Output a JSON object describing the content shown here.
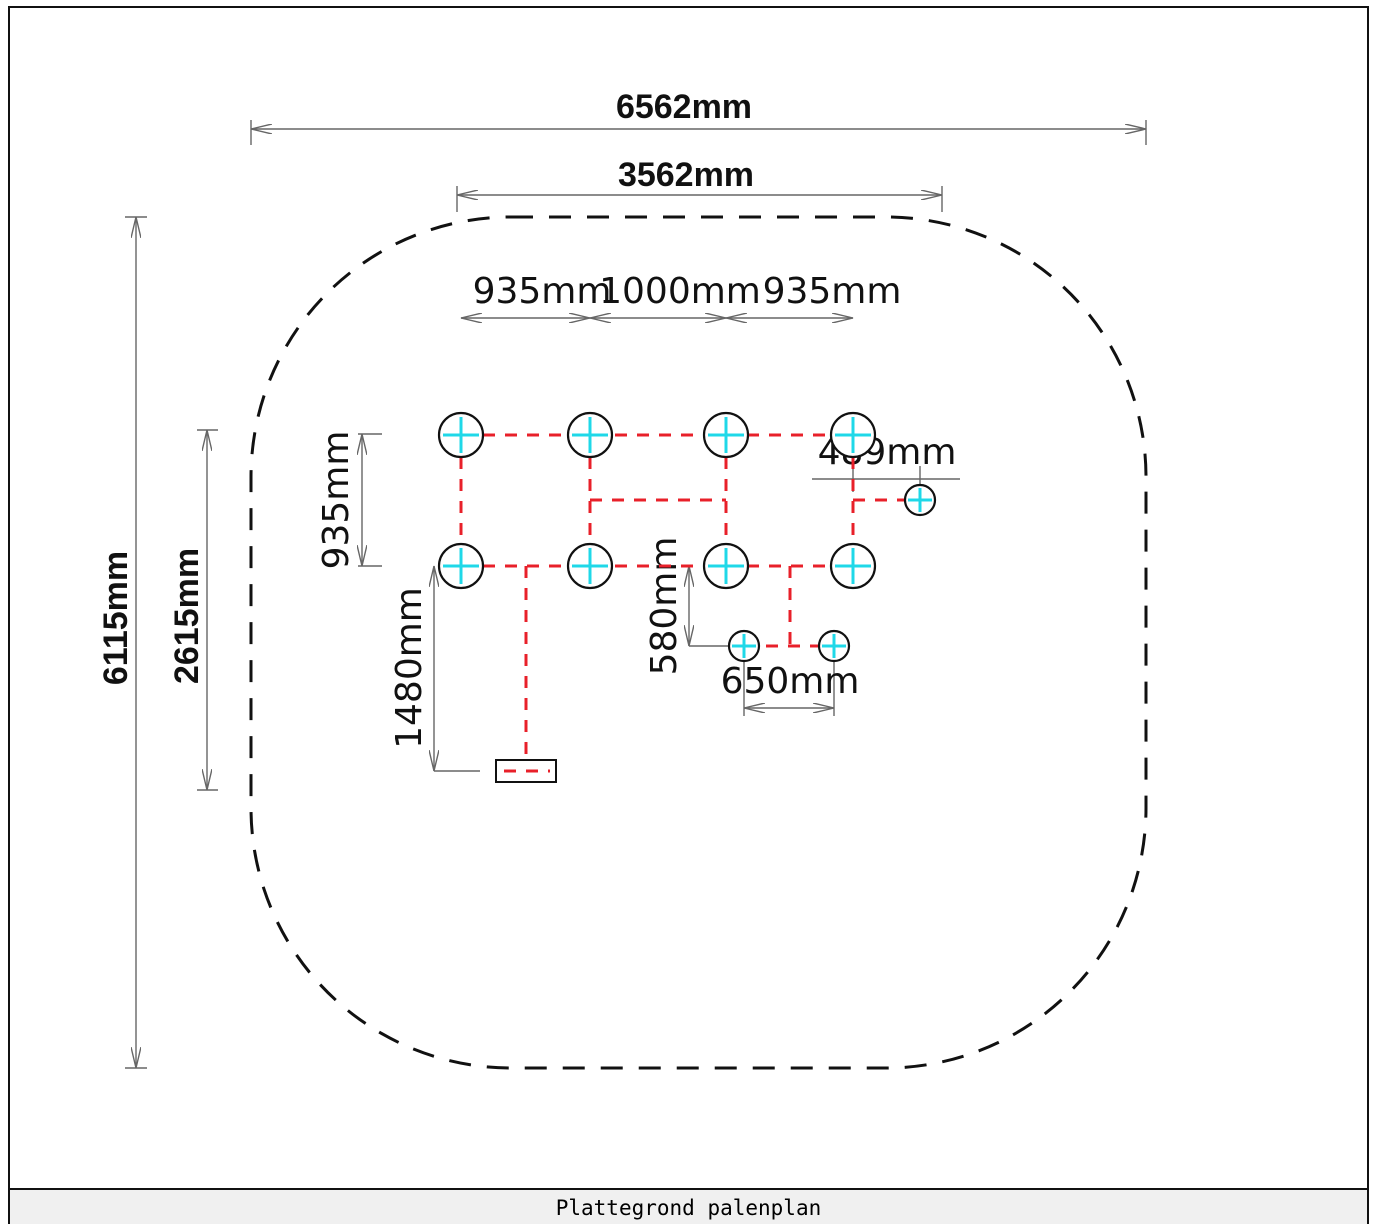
{
  "caption": "Plattegrond palenplan",
  "dimensions": {
    "total_width": "6562mm",
    "inner_width": "3562mm",
    "spacing_1": "935mm",
    "spacing_2": "1000mm",
    "spacing_3": "935mm",
    "total_height": "6115mm",
    "inner_height": "2615mm",
    "row_spacing": "935mm",
    "offset_489": "489mm",
    "offset_1480": "1480mm",
    "offset_580": "580mm",
    "offset_650": "650mm"
  },
  "colors": {
    "pile_cross": "#1fd8e8",
    "connection_line": "#e8202a",
    "outline": "#111111",
    "dimension_line": "#666666"
  }
}
